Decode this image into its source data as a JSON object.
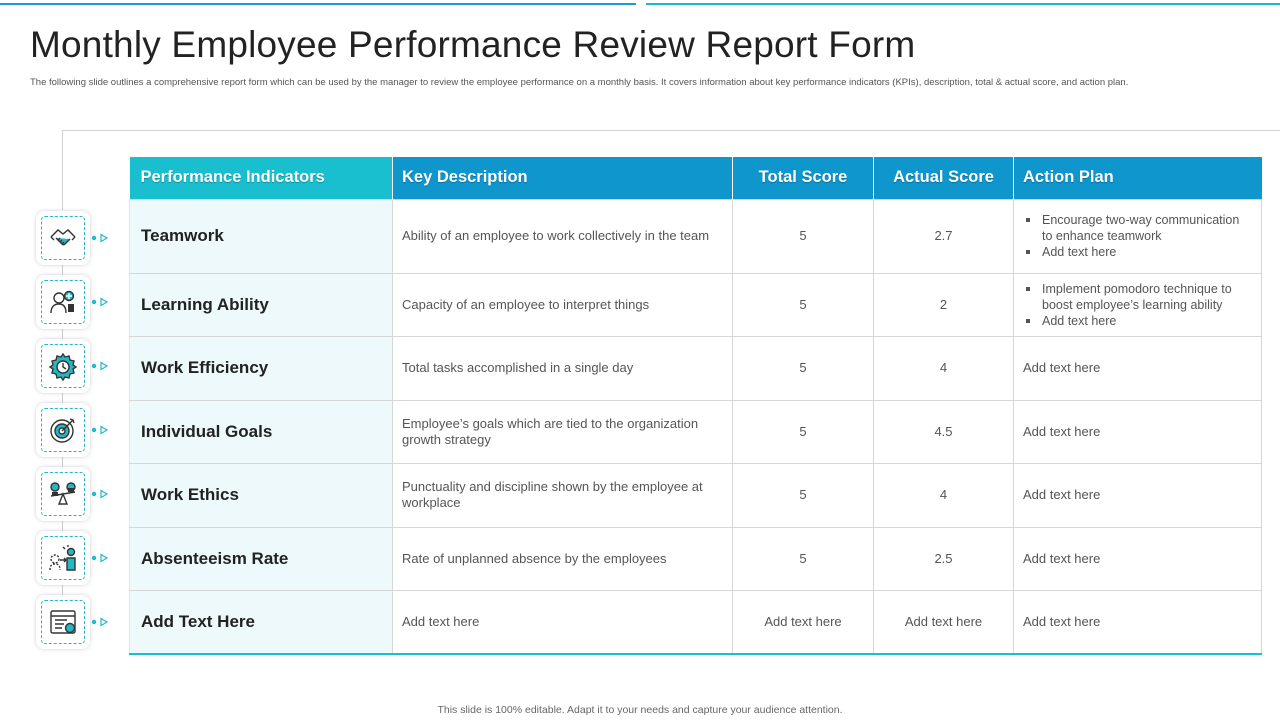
{
  "title": "Monthly Employee Performance Review Report Form",
  "subtitle": "The following slide outlines a comprehensive report form which can be used by the manager to review the employee performance on a monthly basis. It covers information about key performance indicators (KPIs), description, total & actual score, and action plan.",
  "headers": {
    "indicator": "Performance Indicators",
    "description": "Key Description",
    "total": "Total Score",
    "actual": "Actual Score",
    "plan": "Action Plan"
  },
  "rows": [
    {
      "indicator": "Teamwork",
      "icon": "handshake-icon",
      "description": "Ability of an employee to work collectively in the team",
      "total": "5",
      "actual": "2.7",
      "plan_bullets": [
        "Encourage two-way communication to enhance teamwork",
        "Add text here"
      ]
    },
    {
      "indicator": "Learning Ability",
      "icon": "learning-head-icon",
      "description": "Capacity of an employee to interpret things",
      "total": "5",
      "actual": "2",
      "plan_bullets": [
        "Implement pomodoro technique to boost employee’s learning ability",
        "Add text here"
      ]
    },
    {
      "indicator": "Work Efficiency",
      "icon": "gear-clock-icon",
      "description": "Total tasks accomplished in a single day",
      "total": "5",
      "actual": "4",
      "plan": "Add text here"
    },
    {
      "indicator": "Individual Goals",
      "icon": "target-icon",
      "description": "Employee’s goals which are tied to the organization growth strategy",
      "total": "5",
      "actual": "4.5",
      "plan": "Add text here"
    },
    {
      "indicator": "Work Ethics",
      "icon": "balance-scale-icon",
      "description": "Punctuality and discipline shown by the employee at workplace",
      "total": "5",
      "actual": "4",
      "plan": "Add text here"
    },
    {
      "indicator": "Absenteeism Rate",
      "icon": "absent-person-icon",
      "description": "Rate of unplanned  absence by the employees",
      "total": "5",
      "actual": "2.5",
      "plan": "Add text here"
    },
    {
      "indicator": "Add Text Here",
      "icon": "report-window-icon",
      "description": "Add text here",
      "total": "Add text here",
      "actual": "Add text here",
      "plan": "Add text here"
    }
  ],
  "footer": "This slide is 100% editable.  Adapt it to your  needs and capture your audience attention.",
  "colors": {
    "teal": "#19bfce",
    "blue": "#0f96cc",
    "accent_line": "#1a9bd6"
  }
}
